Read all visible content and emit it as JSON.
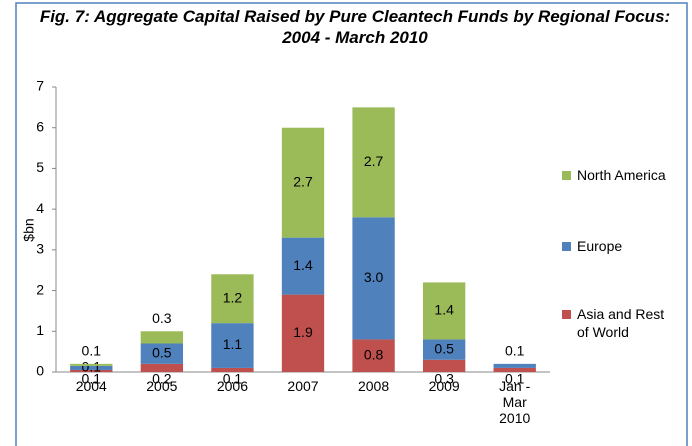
{
  "chart_data": {
    "type": "stacked_bar",
    "title": "Fig. 7: Aggregate Capital Raised by Pure Cleantech Funds by Regional Focus: 2004 - March 2010",
    "y_label": "$bn",
    "categories": [
      "2004",
      "2005",
      "2006",
      "2007",
      "2008",
      "2009",
      "Jan - Mar 2010"
    ],
    "series": [
      {
        "name": "Asia and Rest of World",
        "color": "#c0504d",
        "values": [
          0.05,
          0.2,
          0.1,
          1.9,
          0.8,
          0.3,
          0.1
        ],
        "value_labels": [
          "0.1",
          "0.2",
          "0.1",
          "1.9",
          "0.8",
          "0.3",
          "0.1"
        ]
      },
      {
        "name": "Europe",
        "color": "#4f81bd",
        "values": [
          0.1,
          0.5,
          1.1,
          1.4,
          3.0,
          0.5,
          0.1
        ],
        "value_labels": [
          "0.1",
          "0.5",
          "1.1",
          "1.4",
          "3.0",
          "0.5",
          "0.1"
        ]
      },
      {
        "name": "North America",
        "color": "#9bbb59",
        "values": [
          0.05,
          0.3,
          1.2,
          2.7,
          2.7,
          1.4,
          null
        ],
        "value_labels": [
          "0.1",
          "0.3",
          "1.2",
          "2.7",
          "2.7",
          "1.4",
          null
        ]
      }
    ],
    "ylim": [
      0,
      7
    ],
    "yticks": [
      0,
      1,
      2,
      3,
      4,
      5,
      6,
      7
    ],
    "grid": false,
    "legend": "right"
  }
}
